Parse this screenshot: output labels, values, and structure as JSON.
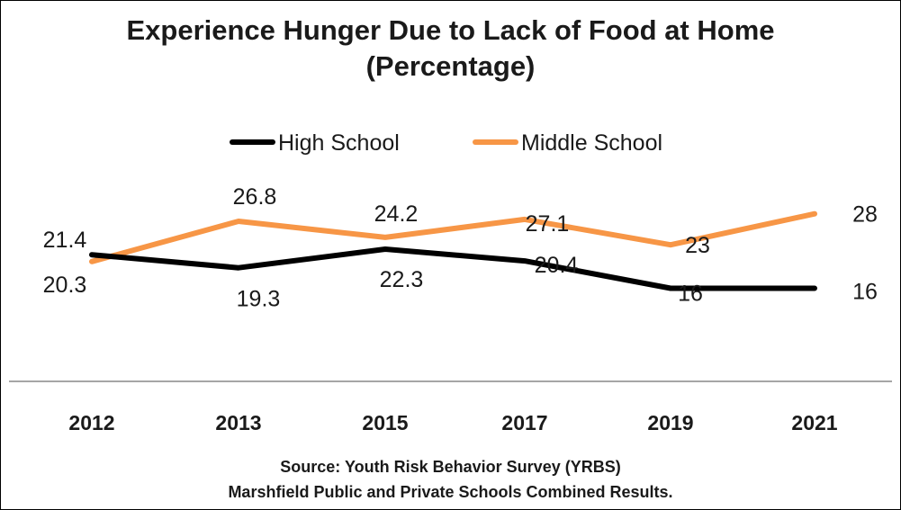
{
  "chart_data": {
    "type": "line",
    "title": "Experience Hunger Due to Lack of Food at Home",
    "subtitle": "(Percentage)",
    "categories": [
      "2012",
      "2013",
      "2015",
      "2017",
      "2019",
      "2021"
    ],
    "series": [
      {
        "name": "High School",
        "color": "#000000",
        "values": [
          21.4,
          19.3,
          22.3,
          20.4,
          16,
          16
        ],
        "labels": [
          "21.4",
          "19.3",
          "22.3",
          "20.4",
          "16",
          "16"
        ]
      },
      {
        "name": "Middle School",
        "color": "#F79646",
        "values": [
          20.3,
          26.8,
          24.2,
          27.1,
          23,
          28
        ],
        "labels": [
          "20.3",
          "26.8",
          "24.2",
          "27.1",
          "23",
          "28"
        ]
      }
    ],
    "legend_position": "top",
    "grid": false,
    "source_lines": [
      "Source: Youth Risk Behavior Survey (YRBS)",
      "Marshfield Public and Private Schools Combined Results."
    ]
  }
}
